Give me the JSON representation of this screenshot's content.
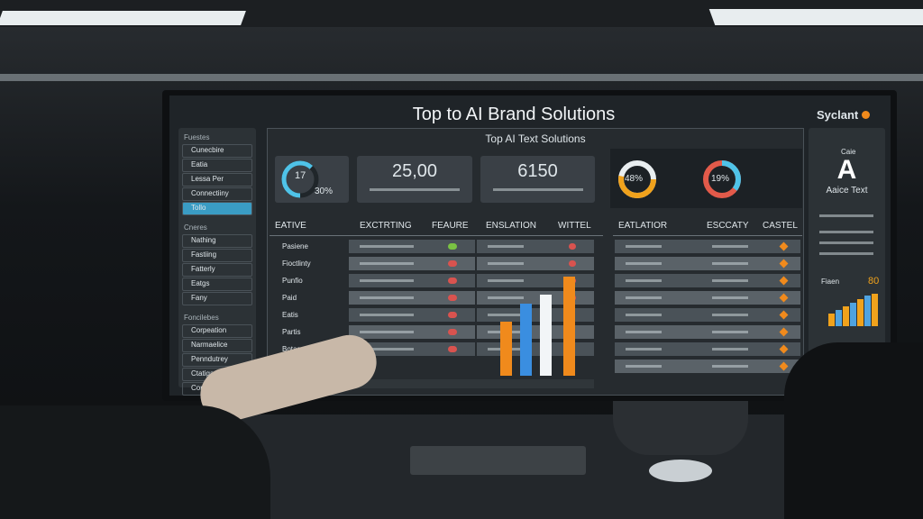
{
  "header": {
    "title": "Top to AI Brand Solutions",
    "brand": "Syclant"
  },
  "panel": {
    "title": "Top AI Text Solutions"
  },
  "stats": [
    {
      "value": "17",
      "sub": "30%"
    },
    {
      "value": "25,00"
    },
    {
      "value": "6150"
    }
  ],
  "rings": [
    "48%",
    "19%"
  ],
  "sidebar": {
    "sections": [
      {
        "title": "Fuestes",
        "items": [
          "Cunecbire",
          "Eatia",
          "Lessa Per",
          "Connectiiny",
          "Tollo"
        ]
      },
      {
        "title": "Cneres",
        "items": [
          "Nathing",
          "Fastiing",
          "Fatterly",
          "Eatgs",
          "Fany"
        ]
      },
      {
        "title": "Foncilebes",
        "items": [
          "Corpeation",
          "Narmaelice",
          "Penndutrey",
          "Ctatigas",
          "Con Sthity"
        ]
      }
    ]
  },
  "table_left": {
    "headers": [
      "EATIVE",
      "EXCTRTING",
      "FEAURE",
      "ENSLATION",
      "WITTEL"
    ],
    "rows": [
      "Pasiene",
      "Fioctlinty",
      "Punfio",
      "Paid",
      "Eatis",
      "Partis",
      "Botas"
    ]
  },
  "table_right": {
    "headers": [
      "EATLATIOR",
      "ESCCATY",
      "CASTEL"
    ]
  },
  "right_panel": {
    "label": "Caie",
    "letter": "A",
    "caption": "Aaice Text",
    "metric_label": "Fiaen",
    "metric": "80"
  }
}
